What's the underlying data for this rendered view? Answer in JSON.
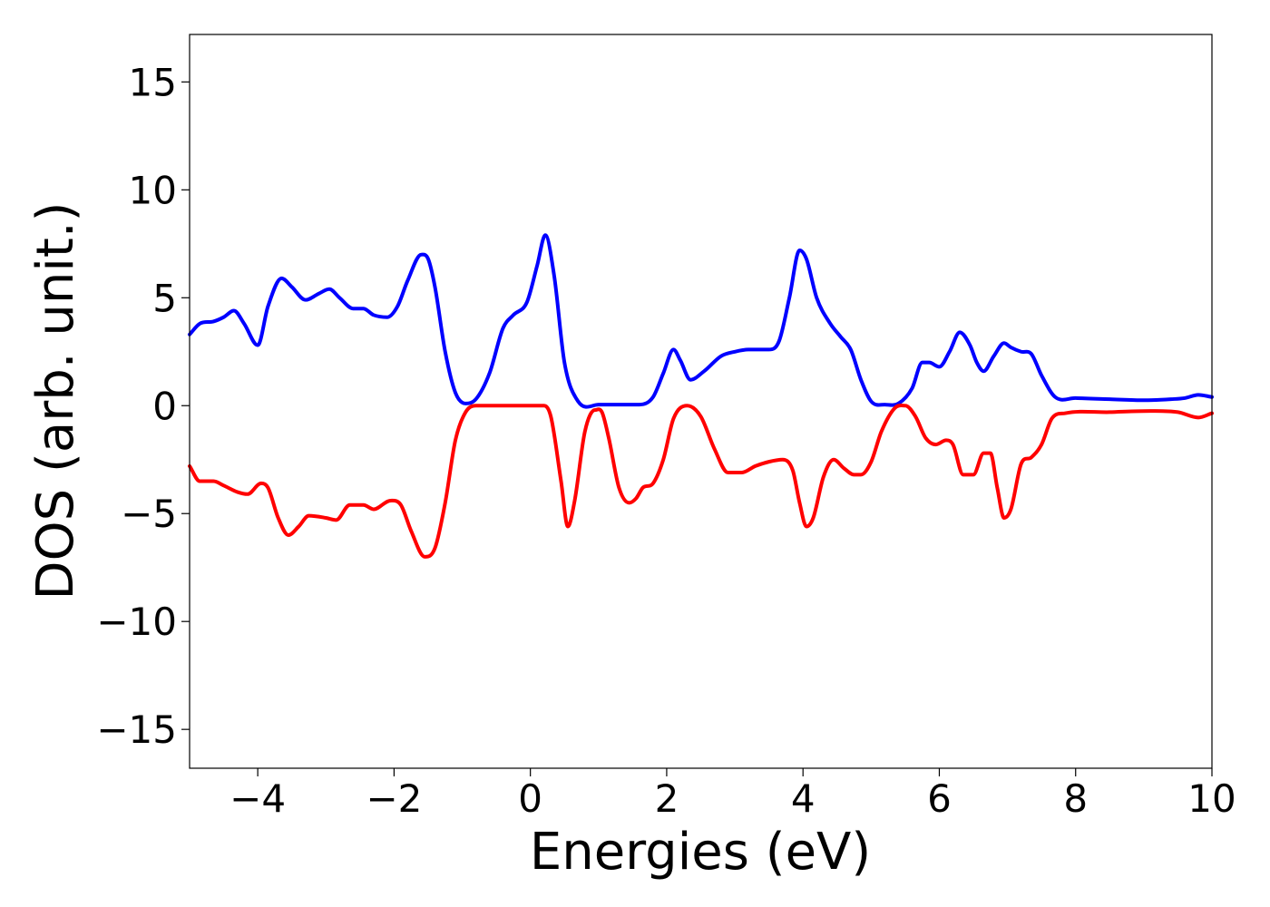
{
  "chart_data": {
    "type": "line",
    "title": "",
    "xlabel": "Energies (eV)",
    "ylabel": "DOS (arb. unit.)",
    "xlim": [
      -5,
      10
    ],
    "ylim": [
      -16.8,
      17.2
    ],
    "grid": false,
    "legend": "none",
    "x_ticks": [
      -4,
      -2,
      0,
      2,
      4,
      6,
      8,
      10
    ],
    "x_tick_labels": [
      "−4",
      "−2",
      "0",
      "2",
      "4",
      "6",
      "8",
      "10"
    ],
    "y_ticks": [
      15,
      10,
      5,
      0,
      -5,
      -10,
      -15
    ],
    "y_tick_labels": [
      "15",
      "10",
      "5",
      "0",
      "−5",
      "−10",
      "−15"
    ],
    "series": [
      {
        "color": "#0000ff",
        "x": [
          -5.0,
          -4.85,
          -4.65,
          -4.5,
          -4.35,
          -4.2,
          -4.0,
          -3.85,
          -3.65,
          -3.5,
          -3.3,
          -3.1,
          -2.95,
          -2.8,
          -2.6,
          -2.45,
          -2.3,
          -2.1,
          -1.95,
          -1.8,
          -1.6,
          -1.5,
          -1.4,
          -1.25,
          -1.1,
          -0.95,
          -0.8,
          -0.6,
          -0.4,
          -0.25,
          -0.05,
          0.1,
          0.22,
          0.35,
          0.5,
          0.7,
          1.0,
          1.3,
          1.6,
          1.8,
          1.95,
          2.1,
          2.2,
          2.35,
          2.55,
          2.8,
          3.0,
          3.2,
          3.5,
          3.65,
          3.8,
          3.95,
          4.05,
          4.2,
          4.4,
          4.55,
          4.7,
          4.85,
          5.0,
          5.2,
          5.4,
          5.6,
          5.75,
          5.85,
          6.0,
          6.15,
          6.3,
          6.45,
          6.55,
          6.65,
          6.8,
          6.95,
          7.05,
          7.2,
          7.35,
          7.5,
          7.7,
          8.0,
          8.5,
          9.0,
          9.4,
          9.6,
          9.8,
          10.0
        ],
        "y": [
          3.3,
          3.8,
          3.9,
          4.1,
          4.4,
          3.8,
          2.8,
          4.6,
          5.9,
          5.5,
          4.9,
          5.2,
          5.4,
          5.0,
          4.5,
          4.5,
          4.2,
          4.1,
          4.6,
          5.8,
          7.0,
          6.8,
          5.5,
          2.5,
          0.6,
          0.1,
          0.3,
          1.5,
          3.6,
          4.2,
          4.8,
          6.5,
          7.9,
          6.0,
          2.0,
          0.2,
          0.05,
          0.05,
          0.05,
          0.4,
          1.5,
          2.6,
          2.1,
          1.2,
          1.6,
          2.3,
          2.5,
          2.6,
          2.6,
          3.0,
          5.0,
          7.2,
          6.8,
          5.0,
          3.8,
          3.2,
          2.6,
          1.2,
          0.2,
          0.05,
          0.1,
          0.8,
          2.0,
          2.0,
          1.8,
          2.5,
          3.4,
          2.8,
          2.0,
          1.6,
          2.3,
          2.9,
          2.7,
          2.5,
          2.4,
          1.4,
          0.4,
          0.35,
          0.3,
          0.25,
          0.3,
          0.35,
          0.5,
          0.4
        ]
      },
      {
        "color": "#ff0000",
        "x": [
          -5.0,
          -4.85,
          -4.65,
          -4.5,
          -4.3,
          -4.15,
          -3.95,
          -3.85,
          -3.7,
          -3.55,
          -3.4,
          -3.25,
          -3.0,
          -2.85,
          -2.65,
          -2.45,
          -2.3,
          -2.05,
          -1.9,
          -1.75,
          -1.55,
          -1.4,
          -1.25,
          -1.1,
          -0.95,
          -0.8,
          -0.5,
          -0.2,
          0.2,
          0.3,
          0.45,
          0.55,
          0.65,
          0.8,
          0.95,
          1.05,
          1.15,
          1.3,
          1.45,
          1.55,
          1.65,
          1.8,
          1.95,
          2.1,
          2.3,
          2.5,
          2.7,
          2.9,
          3.1,
          3.3,
          3.5,
          3.7,
          3.85,
          3.95,
          4.05,
          4.15,
          4.3,
          4.45,
          4.6,
          4.75,
          4.85,
          5.0,
          5.15,
          5.35,
          5.5,
          5.65,
          5.8,
          5.95,
          6.1,
          6.2,
          6.35,
          6.5,
          6.65,
          6.75,
          6.85,
          6.95,
          7.05,
          7.2,
          7.35,
          7.5,
          7.65,
          7.85,
          8.5,
          9.0,
          9.5,
          9.8,
          10.0
        ],
        "y": [
          -2.8,
          -3.5,
          -3.5,
          -3.7,
          -4.0,
          -4.1,
          -3.6,
          -3.8,
          -5.2,
          -6.0,
          -5.6,
          -5.1,
          -5.2,
          -5.3,
          -4.6,
          -4.6,
          -4.8,
          -4.4,
          -4.6,
          -5.8,
          -7.0,
          -6.6,
          -4.5,
          -1.6,
          -0.3,
          0.0,
          0.0,
          0.0,
          0.0,
          -0.5,
          -3.5,
          -5.6,
          -4.4,
          -1.2,
          -0.2,
          -0.3,
          -1.5,
          -3.8,
          -4.5,
          -4.3,
          -3.8,
          -3.6,
          -2.5,
          -0.6,
          0.0,
          -0.5,
          -2.0,
          -3.1,
          -3.1,
          -2.8,
          -2.6,
          -2.5,
          -3.0,
          -4.5,
          -5.6,
          -5.2,
          -3.3,
          -2.5,
          -2.9,
          -3.2,
          -3.2,
          -2.6,
          -1.2,
          -0.1,
          0.0,
          -0.5,
          -1.5,
          -1.8,
          -1.6,
          -1.8,
          -3.2,
          -3.2,
          -2.2,
          -2.2,
          -3.8,
          -5.2,
          -4.8,
          -2.7,
          -2.4,
          -1.8,
          -0.6,
          -0.35,
          -0.3,
          -0.25,
          -0.3,
          -0.55,
          -0.35
        ]
      }
    ]
  }
}
